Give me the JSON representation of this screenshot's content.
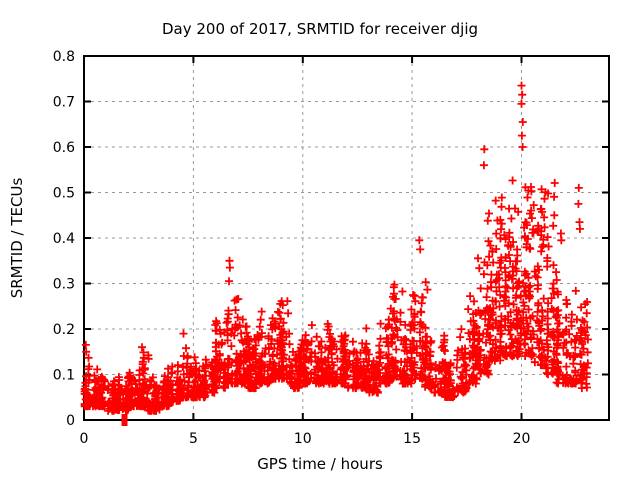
{
  "chart_data": {
    "type": "scatter",
    "title": "Day 200 of 2017, SRMTID for receiver djig",
    "xlabel": "GPS time / hours",
    "ylabel": "SRMTID / TECUs",
    "xlim": [
      0,
      24
    ],
    "ylim": [
      0,
      0.8
    ],
    "xticks": [
      0,
      5,
      10,
      15,
      20
    ],
    "yticks": [
      0,
      0.1,
      0.2,
      0.3,
      0.4,
      0.5,
      0.6,
      0.7,
      0.8
    ],
    "grid": true,
    "legend": "none",
    "marker": "plus",
    "marker_color": "#ff0000",
    "grid_color": "#999999",
    "frame_color": "#000000",
    "background_color": "#ffffff",
    "series_description": "Dense SRMTID samples vs GPS time; summarized as half-hour bins: [x_start, x_end, point_count, band_low, band_high, streak_max] in TECUs",
    "density_bins": [
      [
        0.0,
        0.5,
        55,
        0.03,
        0.1,
        0.17
      ],
      [
        0.5,
        1.0,
        55,
        0.03,
        0.09,
        0.12
      ],
      [
        1.0,
        1.5,
        55,
        0.02,
        0.08,
        0.11
      ],
      [
        1.5,
        2.0,
        55,
        0.02,
        0.07,
        0.1
      ],
      [
        2.0,
        2.5,
        55,
        0.03,
        0.09,
        0.12
      ],
      [
        2.5,
        3.0,
        55,
        0.03,
        0.1,
        0.17
      ],
      [
        3.0,
        3.5,
        55,
        0.02,
        0.07,
        0.1
      ],
      [
        3.5,
        4.0,
        55,
        0.03,
        0.09,
        0.15
      ],
      [
        4.0,
        4.5,
        50,
        0.04,
        0.11,
        0.14
      ],
      [
        4.5,
        5.0,
        50,
        0.05,
        0.12,
        0.19
      ],
      [
        5.0,
        5.5,
        50,
        0.05,
        0.11,
        0.14
      ],
      [
        5.5,
        6.0,
        50,
        0.06,
        0.13,
        0.17
      ],
      [
        6.0,
        6.5,
        55,
        0.07,
        0.18,
        0.27
      ],
      [
        6.5,
        7.0,
        55,
        0.08,
        0.22,
        0.31
      ],
      [
        7.0,
        7.5,
        55,
        0.08,
        0.2,
        0.27
      ],
      [
        7.5,
        8.0,
        55,
        0.07,
        0.17,
        0.24
      ],
      [
        8.0,
        8.5,
        55,
        0.08,
        0.19,
        0.27
      ],
      [
        8.5,
        9.0,
        55,
        0.09,
        0.2,
        0.27
      ],
      [
        9.0,
        9.5,
        55,
        0.09,
        0.2,
        0.28
      ],
      [
        9.5,
        10.0,
        50,
        0.07,
        0.16,
        0.21
      ],
      [
        10.0,
        10.5,
        50,
        0.08,
        0.17,
        0.24
      ],
      [
        10.5,
        11.0,
        50,
        0.08,
        0.16,
        0.21
      ],
      [
        11.0,
        11.5,
        50,
        0.08,
        0.17,
        0.22
      ],
      [
        11.5,
        12.0,
        50,
        0.08,
        0.16,
        0.23
      ],
      [
        12.0,
        12.5,
        50,
        0.07,
        0.15,
        0.19
      ],
      [
        12.5,
        13.0,
        50,
        0.07,
        0.16,
        0.25
      ],
      [
        13.0,
        13.5,
        45,
        0.06,
        0.13,
        0.17
      ],
      [
        13.5,
        14.0,
        50,
        0.08,
        0.18,
        0.3
      ],
      [
        14.0,
        14.5,
        55,
        0.09,
        0.22,
        0.32
      ],
      [
        14.5,
        15.0,
        50,
        0.08,
        0.18,
        0.28
      ],
      [
        15.0,
        15.5,
        55,
        0.09,
        0.24,
        0.4
      ],
      [
        15.5,
        16.0,
        50,
        0.07,
        0.2,
        0.33
      ],
      [
        16.0,
        16.5,
        45,
        0.06,
        0.14,
        0.2
      ],
      [
        16.5,
        17.0,
        45,
        0.05,
        0.12,
        0.16
      ],
      [
        17.0,
        17.5,
        45,
        0.06,
        0.14,
        0.22
      ],
      [
        17.5,
        18.0,
        50,
        0.08,
        0.22,
        0.34
      ],
      [
        18.0,
        18.5,
        55,
        0.1,
        0.32,
        0.47
      ],
      [
        18.5,
        19.0,
        60,
        0.13,
        0.42,
        0.52
      ],
      [
        19.0,
        19.5,
        65,
        0.14,
        0.45,
        0.53
      ],
      [
        19.5,
        20.0,
        65,
        0.14,
        0.47,
        0.55
      ],
      [
        20.0,
        20.5,
        65,
        0.14,
        0.47,
        0.63
      ],
      [
        20.5,
        21.0,
        60,
        0.12,
        0.44,
        0.55
      ],
      [
        21.0,
        21.5,
        55,
        0.1,
        0.36,
        0.54
      ],
      [
        21.5,
        22.0,
        50,
        0.08,
        0.27,
        0.42
      ],
      [
        22.0,
        22.5,
        50,
        0.08,
        0.23,
        0.35
      ],
      [
        22.5,
        23.0,
        45,
        0.07,
        0.2,
        0.3
      ]
    ],
    "outliers": [
      [
        0.08,
        0.165
      ],
      [
        0.1,
        0.15
      ],
      [
        2.65,
        0.16
      ],
      [
        4.55,
        0.19
      ],
      [
        6.65,
        0.35
      ],
      [
        6.67,
        0.335
      ],
      [
        6.63,
        0.305
      ],
      [
        15.33,
        0.395
      ],
      [
        15.37,
        0.375
      ],
      [
        18.3,
        0.595
      ],
      [
        18.28,
        0.56
      ],
      [
        20.0,
        0.735
      ],
      [
        20.03,
        0.715
      ],
      [
        20.0,
        0.695
      ],
      [
        20.06,
        0.655
      ],
      [
        20.02,
        0.625
      ],
      [
        20.05,
        0.6
      ],
      [
        21.8,
        0.41
      ],
      [
        21.82,
        0.395
      ],
      [
        22.62,
        0.51
      ],
      [
        22.6,
        0.475
      ],
      [
        22.65,
        0.435
      ],
      [
        22.67,
        0.42
      ]
    ],
    "zero_marker": {
      "x": 1.85,
      "y": 0.0,
      "shape": "filled-square",
      "color": "#ff0000"
    }
  }
}
